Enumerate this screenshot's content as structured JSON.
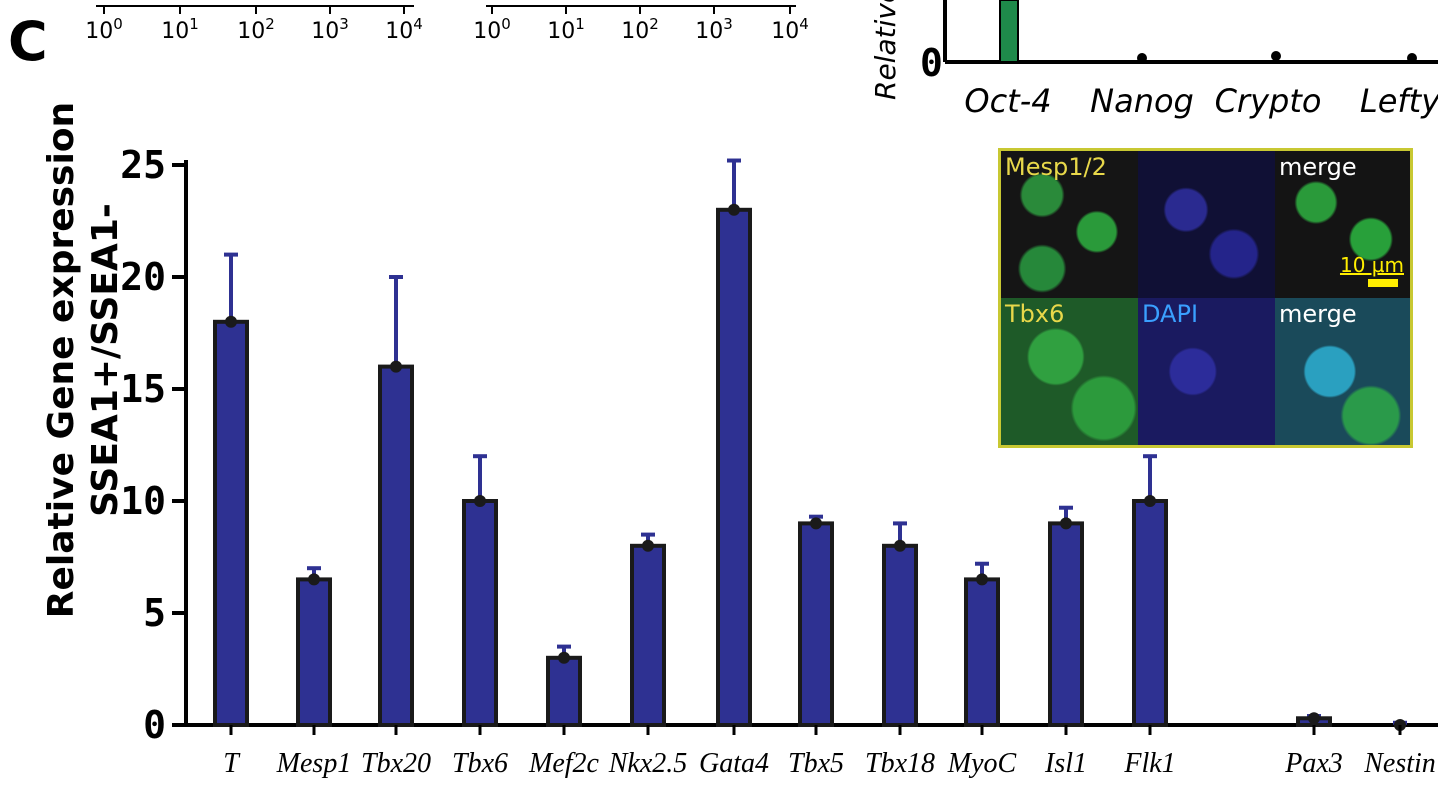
{
  "panel_letter": "C",
  "chart_data": {
    "type": "bar",
    "ylabel_lines": [
      "Relative Gene expression",
      "SSEA1+/SSEA1-"
    ],
    "ylim": [
      0,
      25
    ],
    "yticks": [
      0,
      5,
      10,
      15,
      20,
      25
    ],
    "categories": [
      "T",
      "Mesp1",
      "Tbx20",
      "Tbx6",
      "Mef2c",
      "Nkx2.5",
      "Gata4",
      "Tbx5",
      "Tbx18",
      "MyoC",
      "Isl1",
      "Flk1",
      "Pax3",
      "Nestin"
    ],
    "values": [
      18,
      6.5,
      16,
      10,
      3,
      8,
      23,
      9,
      8,
      6.5,
      9,
      10,
      0.3,
      0
    ],
    "errors": [
      3,
      0.5,
      4,
      2,
      0.5,
      0.5,
      2.2,
      0.3,
      1,
      0.7,
      0.7,
      2,
      0.1,
      0.1
    ],
    "bar_color": "#2e3192",
    "error_color": "#2e3192"
  },
  "top_inset": {
    "ylabel": "Relative C",
    "categories": [
      "Oct-4",
      "Nanog",
      "Crypto",
      "Lefty"
    ],
    "bar_color": "#1e8a4a",
    "ytick": "0"
  },
  "top_flow_axes": {
    "tick_labels": [
      "10",
      "10",
      "10",
      "10",
      "10"
    ],
    "exponents": [
      "0",
      "1",
      "2",
      "3",
      "4"
    ]
  },
  "micrograph": {
    "labels": [
      "Mesp1/2",
      "merge",
      "Tbx6",
      "DAPI",
      "merge"
    ],
    "scale_label": "10 µm"
  }
}
